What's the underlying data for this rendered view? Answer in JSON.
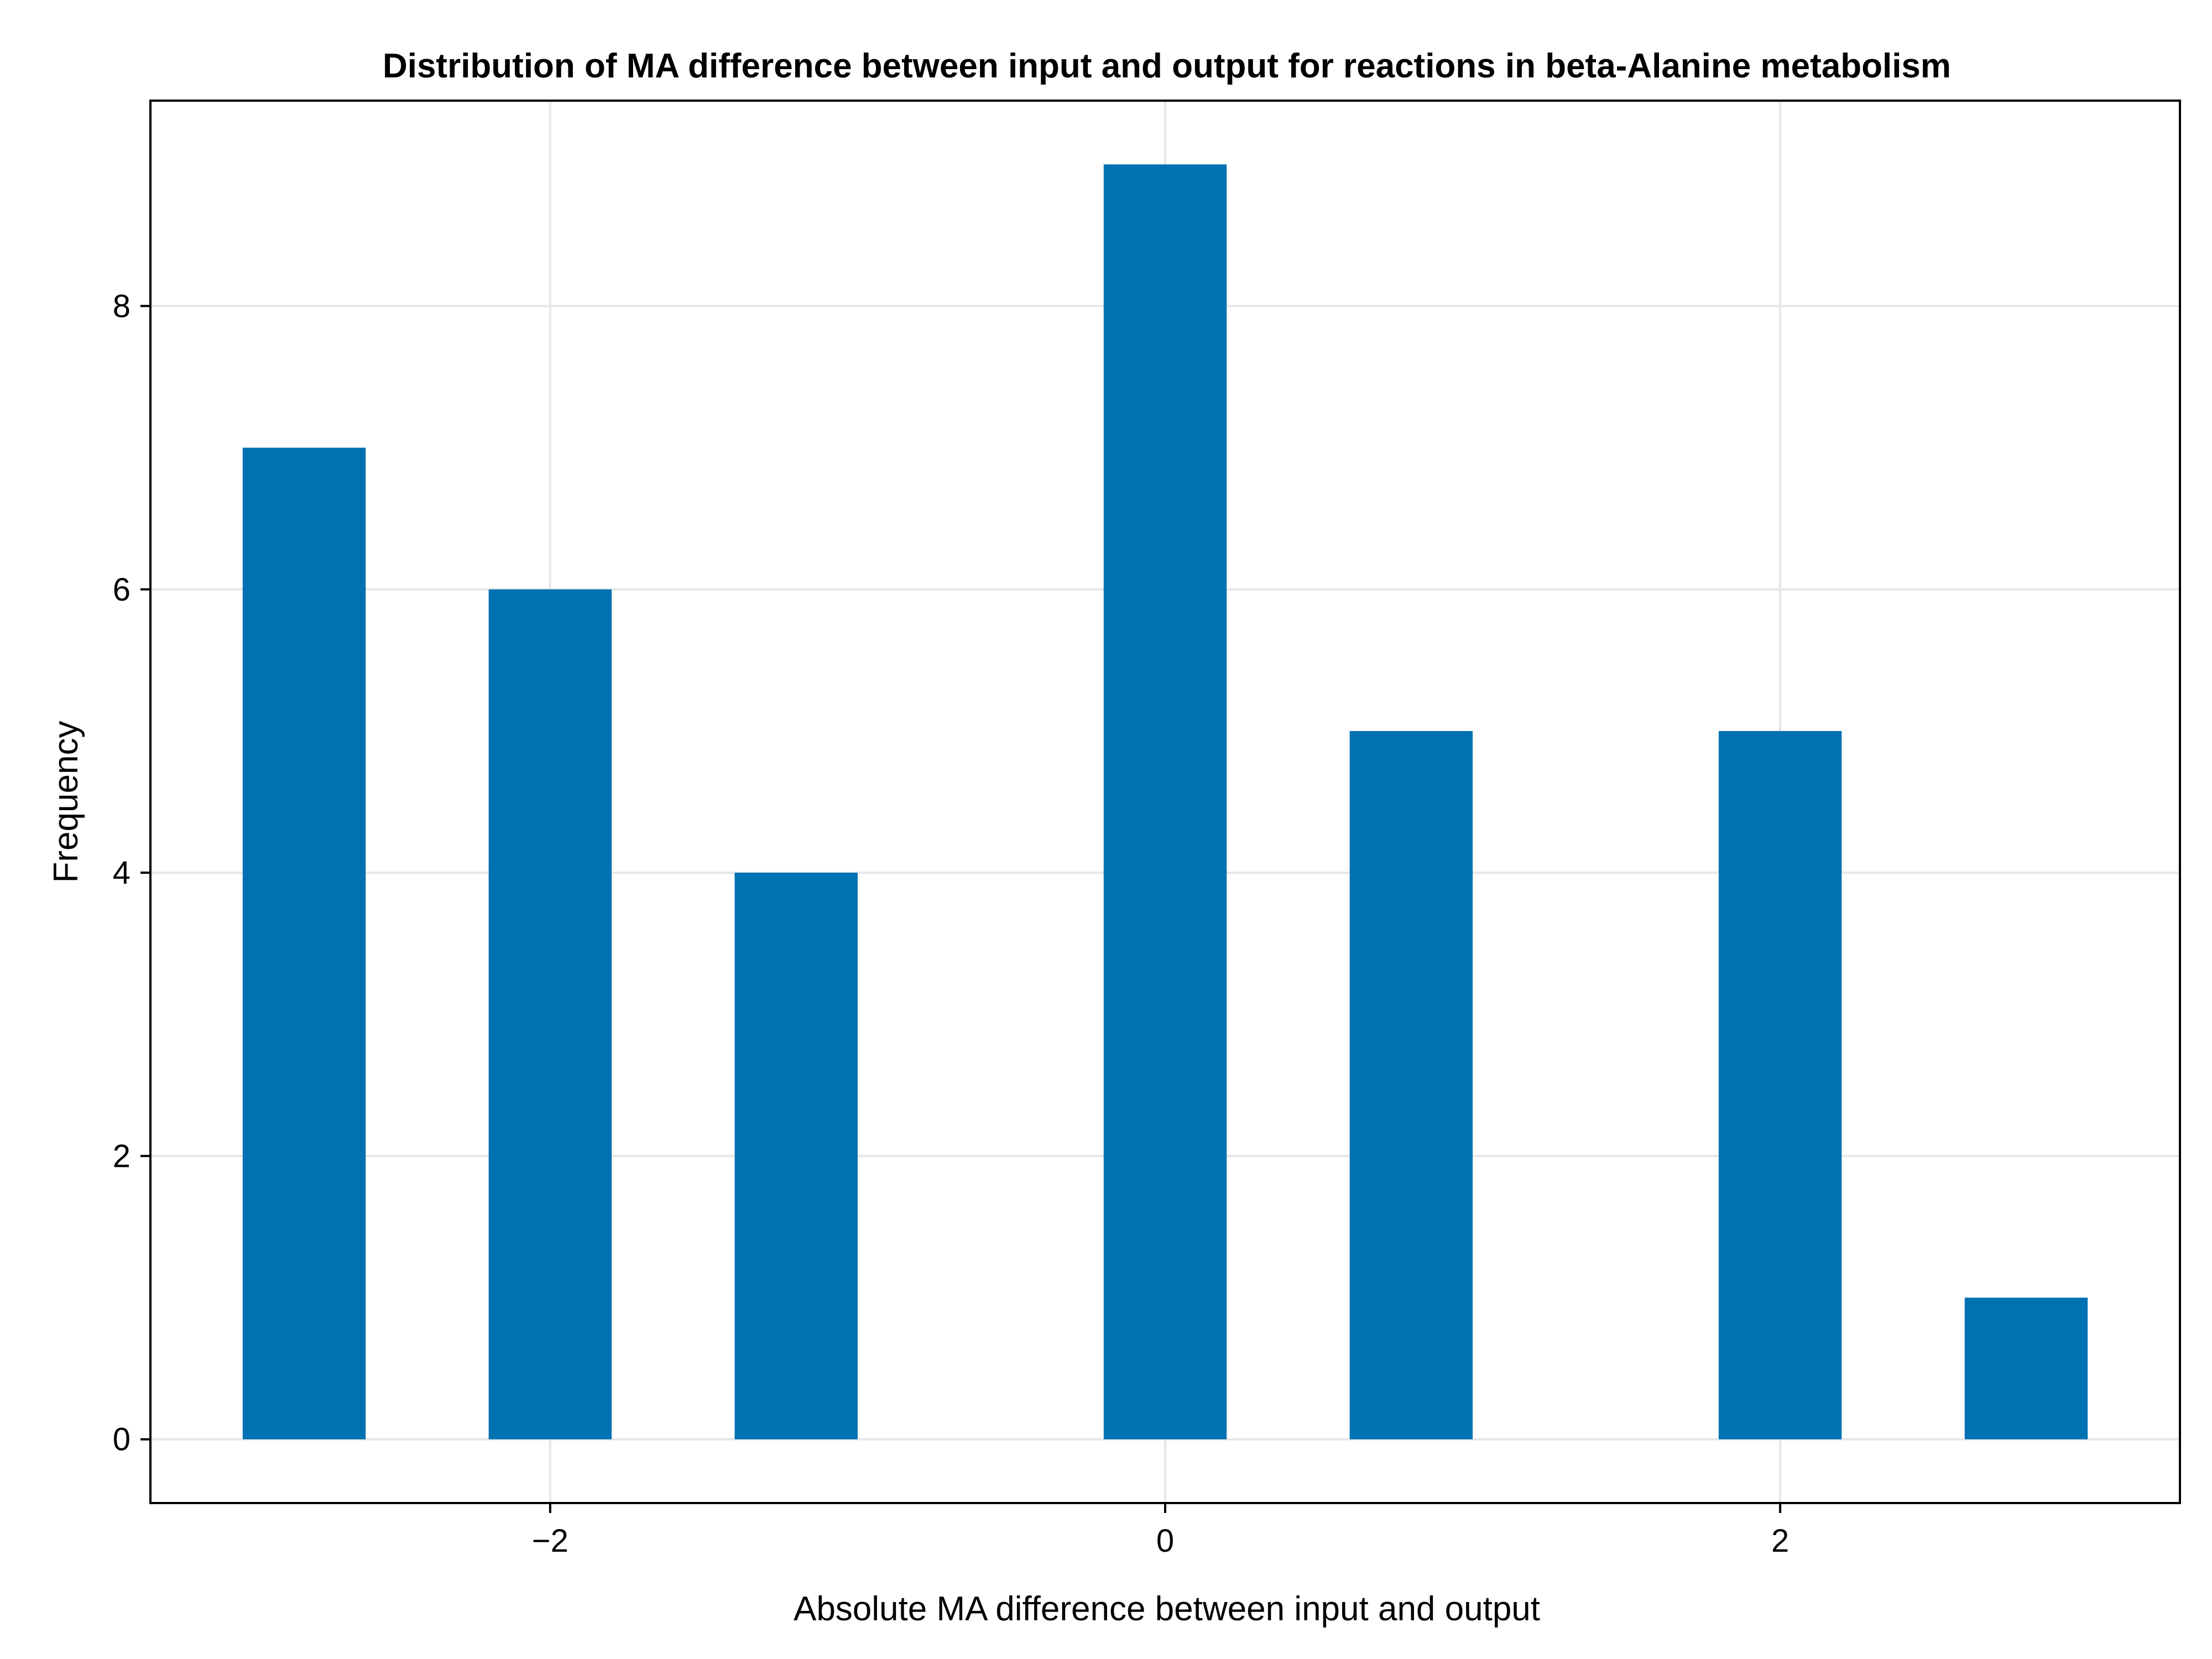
{
  "chart_data": {
    "type": "bar",
    "title": "Distribution of MA difference between input and output for reactions in beta-Alanine metabolism",
    "xlabel": "Absolute MA difference between input and output",
    "ylabel": "Frequency",
    "bar_color": "#0072b2",
    "x": [
      -2.8,
      -2.0,
      -1.2,
      0.0,
      0.8,
      2.0,
      2.8
    ],
    "bar_width": 0.4,
    "values": [
      7,
      6,
      4,
      9,
      5,
      5,
      1
    ],
    "xlim": [
      -3.3,
      3.3
    ],
    "ylim": [
      -0.45,
      9.45
    ],
    "xticks": [
      -2,
      0,
      2
    ],
    "xtick_labels": [
      "−2",
      "0",
      "2"
    ],
    "yticks": [
      0,
      2,
      4,
      6,
      8
    ],
    "ytick_labels": [
      "0",
      "2",
      "4",
      "6",
      "8"
    ],
    "grid": true,
    "legend": "none"
  }
}
